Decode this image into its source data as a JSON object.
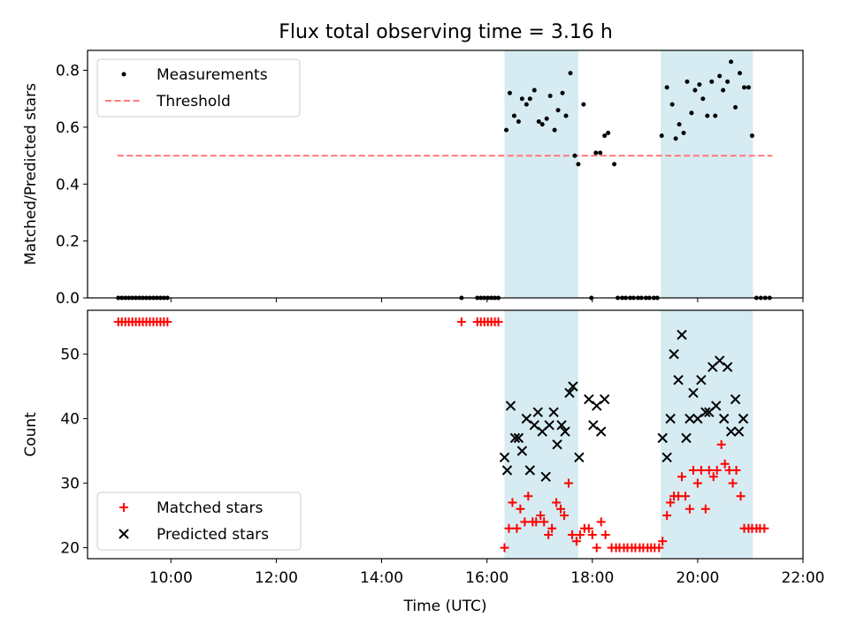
{
  "figure": {
    "title": "Flux total observing time = 3.16 h"
  },
  "chart_data": [
    {
      "type": "scatter",
      "id": "ratio-panel",
      "ylabel": "Matched/Predicted stars",
      "ylim": [
        0,
        0.87
      ],
      "xlim": [
        "08:25",
        "22:00"
      ],
      "yticks": [
        0,
        0.2,
        0.4,
        0.6,
        0.8
      ],
      "ytick_labels": [
        "0.0",
        "0.2",
        "0.4",
        "0.6",
        "0.8"
      ],
      "shaded_intervals": [
        [
          "16:20",
          "17:44"
        ],
        [
          "19:18",
          "21:03"
        ]
      ],
      "legend": {
        "position": "top-left",
        "labels": [
          "Measurements",
          "Threshold"
        ]
      },
      "threshold": {
        "name": "Threshold",
        "y": 0.5,
        "x_range": [
          "08:59",
          "21:25"
        ],
        "color": "#ff7a7a",
        "style": "dashed"
      },
      "series": [
        {
          "name": "Measurements",
          "marker": "dot",
          "color": "#000000",
          "points": [
            [
              "09:00",
              0
            ],
            [
              "09:04",
              0
            ],
            [
              "09:08",
              0
            ],
            [
              "09:12",
              0
            ],
            [
              "09:16",
              0
            ],
            [
              "09:20",
              0
            ],
            [
              "09:24",
              0
            ],
            [
              "09:28",
              0
            ],
            [
              "09:32",
              0
            ],
            [
              "09:36",
              0
            ],
            [
              "09:40",
              0
            ],
            [
              "09:44",
              0
            ],
            [
              "09:48",
              0
            ],
            [
              "09:52",
              0
            ],
            [
              "09:56",
              0
            ],
            [
              "15:31",
              0
            ],
            [
              "15:49",
              0
            ],
            [
              "15:53",
              0
            ],
            [
              "15:57",
              0
            ],
            [
              "16:01",
              0
            ],
            [
              "16:05",
              0
            ],
            [
              "16:09",
              0
            ],
            [
              "16:13",
              0
            ],
            [
              "16:22",
              0.59
            ],
            [
              "16:26",
              0.72
            ],
            [
              "16:31",
              0.64
            ],
            [
              "16:36",
              0.62
            ],
            [
              "16:40",
              0.7
            ],
            [
              "16:45",
              0.68
            ],
            [
              "16:49",
              0.7
            ],
            [
              "16:54",
              0.73
            ],
            [
              "16:59",
              0.62
            ],
            [
              "17:03",
              0.61
            ],
            [
              "17:08",
              0.63
            ],
            [
              "17:12",
              0.71
            ],
            [
              "17:17",
              0.59
            ],
            [
              "17:21",
              0.66
            ],
            [
              "17:26",
              0.72
            ],
            [
              "17:30",
              0.64
            ],
            [
              "17:35",
              0.79
            ],
            [
              "17:40",
              0.5
            ],
            [
              "17:44",
              0.47
            ],
            [
              "17:50",
              0.68
            ],
            [
              "17:59",
              0.0
            ],
            [
              "18:04",
              0.51
            ],
            [
              "18:09",
              0.51
            ],
            [
              "18:14",
              0.57
            ],
            [
              "18:18",
              0.58
            ],
            [
              "18:25",
              0.47
            ],
            [
              "18:29",
              0
            ],
            [
              "18:34",
              0
            ],
            [
              "18:38",
              0
            ],
            [
              "18:43",
              0
            ],
            [
              "18:47",
              0
            ],
            [
              "18:52",
              0
            ],
            [
              "18:56",
              0
            ],
            [
              "19:01",
              0
            ],
            [
              "19:05",
              0
            ],
            [
              "19:10",
              0
            ],
            [
              "19:14",
              0
            ],
            [
              "19:19",
              0.57
            ],
            [
              "19:25",
              0.74
            ],
            [
              "19:31",
              0.68
            ],
            [
              "19:35",
              0.56
            ],
            [
              "19:39",
              0.61
            ],
            [
              "19:44",
              0.58
            ],
            [
              "19:48",
              0.76
            ],
            [
              "19:53",
              0.65
            ],
            [
              "19:57",
              0.73
            ],
            [
              "20:02",
              0.75
            ],
            [
              "20:06",
              0.7
            ],
            [
              "20:11",
              0.64
            ],
            [
              "20:16",
              0.76
            ],
            [
              "20:20",
              0.64
            ],
            [
              "20:25",
              0.78
            ],
            [
              "20:29",
              0.73
            ],
            [
              "20:34",
              0.76
            ],
            [
              "20:38",
              0.83
            ],
            [
              "20:43",
              0.67
            ],
            [
              "20:48",
              0.79
            ],
            [
              "20:53",
              0.74
            ],
            [
              "20:58",
              0.74
            ],
            [
              "21:02",
              0.57
            ],
            [
              "21:07",
              0
            ],
            [
              "21:12",
              0
            ],
            [
              "21:17",
              0
            ],
            [
              "21:22",
              0
            ]
          ]
        }
      ]
    },
    {
      "type": "scatter",
      "id": "count-panel",
      "ylabel": "Count",
      "xlabel": "Time (UTC)",
      "ylim": [
        18.3,
        56.8
      ],
      "xlim": [
        "08:25",
        "22:00"
      ],
      "yticks": [
        20,
        30,
        40,
        50
      ],
      "ytick_labels": [
        "20",
        "30",
        "40",
        "50"
      ],
      "xticks": [
        "10:00",
        "12:00",
        "14:00",
        "16:00",
        "18:00",
        "20:00",
        "22:00"
      ],
      "shaded_intervals": [
        [
          "16:20",
          "17:44"
        ],
        [
          "19:18",
          "21:03"
        ]
      ],
      "legend": {
        "position": "bottom-left",
        "labels": [
          "Matched stars",
          "Predicted stars"
        ]
      },
      "series": [
        {
          "name": "Matched stars",
          "marker": "plus",
          "color": "#ff0000",
          "points": [
            [
              "09:00",
              55
            ],
            [
              "09:04",
              55
            ],
            [
              "09:08",
              55
            ],
            [
              "09:12",
              55
            ],
            [
              "09:16",
              55
            ],
            [
              "09:20",
              55
            ],
            [
              "09:24",
              55
            ],
            [
              "09:28",
              55
            ],
            [
              "09:32",
              55
            ],
            [
              "09:36",
              55
            ],
            [
              "09:40",
              55
            ],
            [
              "09:44",
              55
            ],
            [
              "09:48",
              55
            ],
            [
              "09:52",
              55
            ],
            [
              "09:56",
              55
            ],
            [
              "15:31",
              55
            ],
            [
              "15:49",
              55
            ],
            [
              "15:53",
              55
            ],
            [
              "15:57",
              55
            ],
            [
              "16:01",
              55
            ],
            [
              "16:05",
              55
            ],
            [
              "16:09",
              55
            ],
            [
              "16:13",
              55
            ],
            [
              "16:20",
              20
            ],
            [
              "16:25",
              23
            ],
            [
              "16:29",
              27
            ],
            [
              "16:34",
              23
            ],
            [
              "16:38",
              26
            ],
            [
              "16:43",
              24
            ],
            [
              "16:47",
              28
            ],
            [
              "16:52",
              24
            ],
            [
              "16:56",
              24
            ],
            [
              "17:01",
              25
            ],
            [
              "17:05",
              24
            ],
            [
              "17:10",
              22
            ],
            [
              "17:14",
              23
            ],
            [
              "17:19",
              27
            ],
            [
              "17:24",
              26
            ],
            [
              "17:28",
              25
            ],
            [
              "17:33",
              30
            ],
            [
              "17:37",
              22
            ],
            [
              "17:42",
              21
            ],
            [
              "17:46",
              22
            ],
            [
              "17:51",
              23
            ],
            [
              "17:56",
              23
            ],
            [
              "18:00",
              22
            ],
            [
              "18:05",
              20
            ],
            [
              "18:10",
              24
            ],
            [
              "18:15",
              22
            ],
            [
              "18:22",
              20
            ],
            [
              "18:27",
              20
            ],
            [
              "18:31",
              20
            ],
            [
              "18:36",
              20
            ],
            [
              "18:40",
              20
            ],
            [
              "18:45",
              20
            ],
            [
              "18:49",
              20
            ],
            [
              "18:54",
              20
            ],
            [
              "18:58",
              20
            ],
            [
              "19:03",
              20
            ],
            [
              "19:07",
              20
            ],
            [
              "19:11",
              20
            ],
            [
              "19:16",
              20
            ],
            [
              "19:20",
              21
            ],
            [
              "19:25",
              25
            ],
            [
              "19:29",
              27
            ],
            [
              "19:33",
              28
            ],
            [
              "19:38",
              28
            ],
            [
              "19:42",
              31
            ],
            [
              "19:46",
              28
            ],
            [
              "19:51",
              26
            ],
            [
              "19:55",
              32
            ],
            [
              "20:00",
              30
            ],
            [
              "20:04",
              32
            ],
            [
              "20:09",
              26
            ],
            [
              "20:13",
              32
            ],
            [
              "20:18",
              31
            ],
            [
              "20:22",
              32
            ],
            [
              "20:27",
              36
            ],
            [
              "20:31",
              33
            ],
            [
              "20:36",
              32
            ],
            [
              "20:40",
              30
            ],
            [
              "20:44",
              32
            ],
            [
              "20:49",
              28
            ],
            [
              "20:53",
              23
            ],
            [
              "20:58",
              23
            ],
            [
              "21:02",
              23
            ],
            [
              "21:07",
              23
            ],
            [
              "21:11",
              23
            ],
            [
              "21:16",
              23
            ]
          ]
        },
        {
          "name": "Predicted stars",
          "marker": "x",
          "color": "#000000",
          "points": [
            [
              "16:20",
              34
            ],
            [
              "16:23",
              32
            ],
            [
              "16:27",
              42
            ],
            [
              "16:32",
              37
            ],
            [
              "16:36",
              37
            ],
            [
              "16:40",
              35
            ],
            [
              "16:45",
              40
            ],
            [
              "16:49",
              32
            ],
            [
              "16:54",
              39
            ],
            [
              "16:58",
              41
            ],
            [
              "17:03",
              38
            ],
            [
              "17:07",
              31
            ],
            [
              "17:11",
              39
            ],
            [
              "17:16",
              41
            ],
            [
              "17:20",
              36
            ],
            [
              "17:25",
              39
            ],
            [
              "17:29",
              38
            ],
            [
              "17:34",
              44
            ],
            [
              "17:38",
              45
            ],
            [
              "17:45",
              34
            ],
            [
              "17:56",
              43
            ],
            [
              "18:01",
              39
            ],
            [
              "18:05",
              42
            ],
            [
              "18:10",
              38
            ],
            [
              "18:14",
              43
            ],
            [
              "19:20",
              37
            ],
            [
              "19:25",
              34
            ],
            [
              "19:29",
              40
            ],
            [
              "19:33",
              50
            ],
            [
              "19:38",
              46
            ],
            [
              "19:42",
              53
            ],
            [
              "19:47",
              37
            ],
            [
              "19:51",
              40
            ],
            [
              "19:55",
              44
            ],
            [
              "20:00",
              40
            ],
            [
              "20:04",
              46
            ],
            [
              "20:09",
              41
            ],
            [
              "20:13",
              41
            ],
            [
              "20:17",
              48
            ],
            [
              "20:21",
              42
            ],
            [
              "20:25",
              49
            ],
            [
              "20:30",
              40
            ],
            [
              "20:34",
              48
            ],
            [
              "20:38",
              38
            ],
            [
              "20:43",
              43
            ],
            [
              "20:47",
              38
            ],
            [
              "20:52",
              40
            ]
          ]
        }
      ]
    }
  ]
}
